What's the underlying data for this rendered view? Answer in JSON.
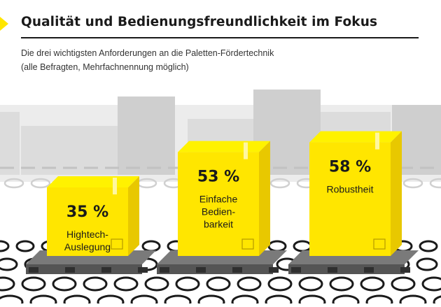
{
  "header": {
    "title": "Qualität und Bedienungsfreundlichkeit im Fokus",
    "subtitle_line1": "Die drei wichtigsten Anforderungen an die Paletten-Fördertechnik",
    "subtitle_line2": "(alle Befragten, Mehrfachnennung möglich)"
  },
  "colors": {
    "accent": "#ffe600",
    "box_front": "#ffe600",
    "box_top": "#fff200",
    "box_side": "#e8c800",
    "text": "#1a1a1a",
    "background_grey": "#d9d9d9",
    "pallet": "#555555"
  },
  "chart_data": {
    "type": "bar",
    "categories": [
      "Hightech-Auslegung",
      "Einfache Bedienbarkeit",
      "Robustheit"
    ],
    "category_labels": [
      [
        "Hightech-",
        "Auslegung"
      ],
      [
        "Einfache",
        "Bedien-",
        "barkeit"
      ],
      [
        "Robustheit"
      ]
    ],
    "values": [
      35,
      53,
      58
    ],
    "value_labels": [
      "35 %",
      "53 %",
      "58 %"
    ],
    "unit": "%",
    "title": "Qualität und Bedienungsfreundlichkeit im Fokus",
    "xlabel": "",
    "ylabel": "",
    "ylim": [
      0,
      100
    ]
  }
}
